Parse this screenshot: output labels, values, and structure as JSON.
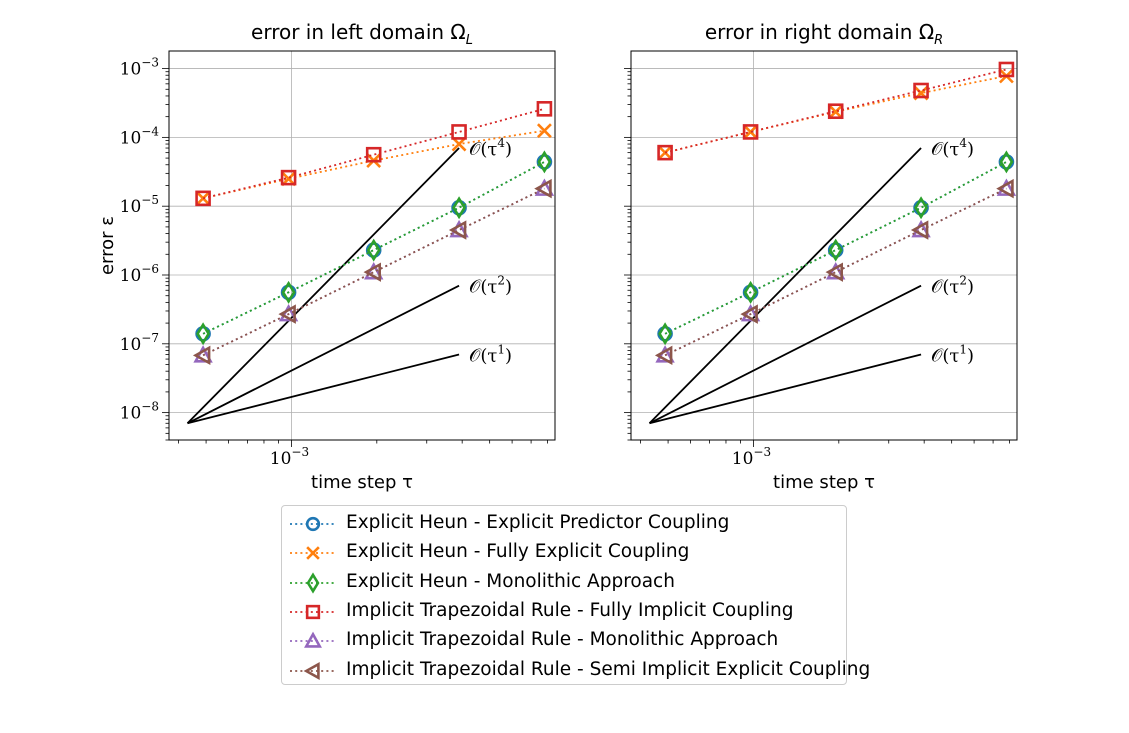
{
  "chart_data": [
    {
      "type": "line",
      "title": "error in left domain Ω",
      "title_sub": "L",
      "xlabel": "time step τ",
      "ylabel": "error ε",
      "xscale": "log",
      "yscale": "log",
      "xlim": [
        0.00037,
        0.0085
      ],
      "ylim": [
        4e-09,
        0.0018
      ],
      "grid": true,
      "xticks": [
        {
          "value": 0.001,
          "base": "10",
          "exp": "−3"
        }
      ],
      "yticks": [
        {
          "value": 1e-08,
          "base": "10",
          "exp": "−8"
        },
        {
          "value": 1e-07,
          "base": "10",
          "exp": "−7"
        },
        {
          "value": 1e-06,
          "base": "10",
          "exp": "−6"
        },
        {
          "value": 1e-05,
          "base": "10",
          "exp": "−5"
        },
        {
          "value": 0.0001,
          "base": "10",
          "exp": "−4"
        },
        {
          "value": 0.001,
          "base": "10",
          "exp": "−3"
        }
      ],
      "x": [
        0.000488,
        0.000977,
        0.00195,
        0.0039,
        0.0078
      ],
      "series": [
        {
          "name": "Explicit Heun - Explicit Predictor Coupling",
          "values": [
            1.4e-07,
            5.6e-07,
            2.3e-06,
            9.5e-06,
            4.4e-05
          ]
        },
        {
          "name": "Explicit Heun - Fully Explicit Coupling",
          "values": [
            1.3e-05,
            2.5e-05,
            4.6e-05,
            8e-05,
            0.000125
          ]
        },
        {
          "name": "Explicit Heun - Monolithic Approach",
          "values": [
            1.4e-07,
            5.6e-07,
            2.3e-06,
            9.5e-06,
            4.4e-05
          ]
        },
        {
          "name": "Implicit Trapezoidal Rule - Fully Implicit Coupling",
          "values": [
            1.3e-05,
            2.6e-05,
            5.6e-05,
            0.00012,
            0.00026
          ]
        },
        {
          "name": "Implicit Trapezoidal Rule - Monolithic Approach",
          "values": [
            6.8e-08,
            2.7e-07,
            1.1e-06,
            4.5e-06,
            1.8e-05
          ]
        },
        {
          "name": "Implicit Trapezoidal Rule - Semi Implicit Explicit Coupling",
          "values": [
            6.8e-08,
            2.7e-07,
            1.1e-06,
            4.5e-06,
            1.8e-05
          ]
        }
      ],
      "reference_lines": [
        {
          "label_base": "𝒪(τ",
          "label_exp": "4",
          "label_end": ")",
          "order": 4,
          "x": [
            0.00043,
            0.0039
          ],
          "y": [
            7e-09,
            7e-05
          ]
        },
        {
          "label_base": "𝒪(τ",
          "label_exp": "2",
          "label_end": ")",
          "order": 2,
          "x": [
            0.00043,
            0.0039
          ],
          "y": [
            7e-09,
            7e-07
          ]
        },
        {
          "label_base": "𝒪(τ",
          "label_exp": "1",
          "label_end": ")",
          "order": 1,
          "x": [
            0.00043,
            0.0039
          ],
          "y": [
            7e-09,
            7e-08
          ]
        }
      ]
    },
    {
      "type": "line",
      "title": "error in right domain Ω",
      "title_sub": "R",
      "xlabel": "time step τ",
      "ylabel": "",
      "xscale": "log",
      "yscale": "log",
      "xlim": [
        0.00037,
        0.0085
      ],
      "ylim": [
        4e-09,
        0.0018
      ],
      "grid": true,
      "xticks": [
        {
          "value": 0.001,
          "base": "10",
          "exp": "−3"
        }
      ],
      "yticks": [],
      "x": [
        0.000488,
        0.000977,
        0.00195,
        0.0039,
        0.0078
      ],
      "series": [
        {
          "name": "Explicit Heun - Explicit Predictor Coupling",
          "values": [
            1.4e-07,
            5.6e-07,
            2.3e-06,
            9.5e-06,
            4.4e-05
          ]
        },
        {
          "name": "Explicit Heun - Fully Explicit Coupling",
          "values": [
            6e-05,
            0.00012,
            0.000235,
            0.00044,
            0.00078
          ]
        },
        {
          "name": "Explicit Heun - Monolithic Approach",
          "values": [
            1.4e-07,
            5.6e-07,
            2.3e-06,
            9.5e-06,
            4.4e-05
          ]
        },
        {
          "name": "Implicit Trapezoidal Rule - Fully Implicit Coupling",
          "values": [
            6e-05,
            0.00012,
            0.00024,
            0.00048,
            0.00097
          ]
        },
        {
          "name": "Implicit Trapezoidal Rule - Monolithic Approach",
          "values": [
            6.8e-08,
            2.7e-07,
            1.1e-06,
            4.5e-06,
            1.8e-05
          ]
        },
        {
          "name": "Implicit Trapezoidal Rule - Semi Implicit Explicit Coupling",
          "values": [
            6.8e-08,
            2.7e-07,
            1.1e-06,
            4.5e-06,
            1.8e-05
          ]
        }
      ],
      "reference_lines": [
        {
          "label_base": "𝒪(τ",
          "label_exp": "4",
          "label_end": ")",
          "order": 4,
          "x": [
            0.00043,
            0.0039
          ],
          "y": [
            7e-09,
            7e-05
          ]
        },
        {
          "label_base": "𝒪(τ",
          "label_exp": "2",
          "label_end": ")",
          "order": 2,
          "x": [
            0.00043,
            0.0039
          ],
          "y": [
            7e-09,
            7e-07
          ]
        },
        {
          "label_base": "𝒪(τ",
          "label_exp": "1",
          "label_end": ")",
          "order": 1,
          "x": [
            0.00043,
            0.0039
          ],
          "y": [
            7e-09,
            7e-08
          ]
        }
      ]
    }
  ],
  "legend": {
    "placement": "below",
    "entries": [
      {
        "label": "Explicit Heun - Explicit Predictor Coupling",
        "color": "#1f77b4",
        "marker": "circle"
      },
      {
        "label": "Explicit Heun - Fully Explicit Coupling",
        "color": "#ff7f0e",
        "marker": "x"
      },
      {
        "label": "Explicit Heun - Monolithic Approach",
        "color": "#2ca02c",
        "marker": "thin-diamond"
      },
      {
        "label": "Implicit Trapezoidal Rule - Fully Implicit Coupling",
        "color": "#d62728",
        "marker": "square"
      },
      {
        "label": "Implicit Trapezoidal Rule - Monolithic Approach",
        "color": "#9467bd",
        "marker": "triangle-up"
      },
      {
        "label": "Implicit Trapezoidal Rule - Semi Implicit Explicit Coupling",
        "color": "#8c564b",
        "marker": "triangle-left"
      }
    ]
  }
}
